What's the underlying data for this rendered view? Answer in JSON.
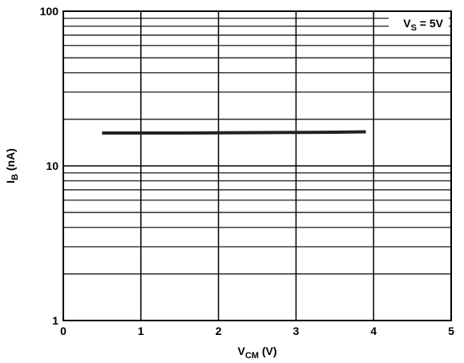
{
  "chart_data": {
    "type": "line",
    "title": "",
    "xlabel": {
      "main": "V",
      "sub": "CM",
      "unit": " (V)"
    },
    "ylabel": {
      "main": "I",
      "sub": "B",
      "unit": " (nA)"
    },
    "xlim": [
      0,
      5
    ],
    "ylim": [
      1,
      100
    ],
    "yscale": "log",
    "grid": true,
    "x_ticks": [
      0,
      1,
      2,
      3,
      4,
      5
    ],
    "x_tick_labels": [
      "0",
      "1",
      "2",
      "3",
      "4",
      "5"
    ],
    "y_ticks": [
      1,
      10,
      100
    ],
    "y_tick_labels": [
      "1",
      "10",
      "100"
    ],
    "annotation": {
      "main": "V",
      "sub": "S",
      "rest": " = 5V",
      "placement": "top-right"
    },
    "series": [
      {
        "x": [
          0.5,
          1.0,
          1.5,
          2.0,
          2.5,
          3.0,
          3.5,
          3.9
        ],
        "y": [
          16.3,
          16.3,
          16.3,
          16.35,
          16.4,
          16.45,
          16.5,
          16.6
        ]
      }
    ],
    "colors": {
      "line": "#222222",
      "grid": "#000000",
      "frame": "#000000"
    }
  }
}
